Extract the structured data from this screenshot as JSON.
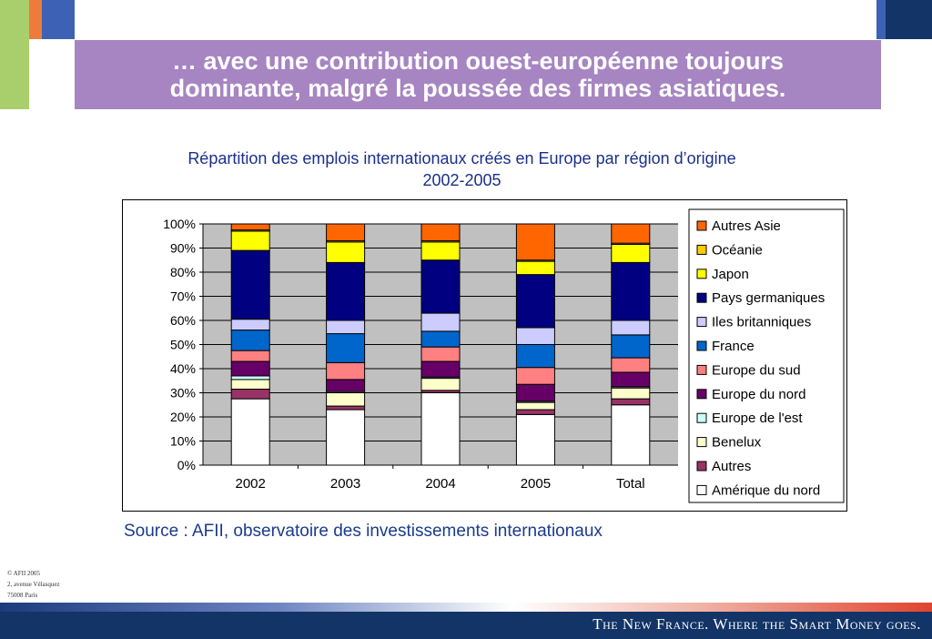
{
  "slide": {
    "title_line1": "… avec une contribution ouest-européenne toujours",
    "title_line2": "dominante, malgré la poussée des firmes asiatiques.",
    "chart_title_line1": "Répartition des emplois internationaux créés en Europe par région d’origine",
    "chart_title_line2": "2002-2005",
    "source": "Source : AFII, observatoire des investissements internationaux",
    "address_line1": "© AFII 2005",
    "address_line2": "2, avenue Vélasquez",
    "address_line3": "75008 Paris",
    "footer_slogan": "The New France. Where the Smart Money goes."
  },
  "colors": {
    "banner": "#a685c2",
    "plot_background": "#c0c0c0",
    "footer": "#123466"
  },
  "chart_data": {
    "type": "bar",
    "stacked": true,
    "percent_axis": true,
    "categories": [
      "2002",
      "2003",
      "2004",
      "2005",
      "Total"
    ],
    "y_ticks": [
      "0%",
      "10%",
      "20%",
      "30%",
      "40%",
      "50%",
      "60%",
      "70%",
      "80%",
      "90%",
      "100%"
    ],
    "ylim": [
      0,
      100
    ],
    "grid": true,
    "legend_position": "right",
    "series": [
      {
        "name": "Amérique du nord",
        "color": "#ffffff",
        "values": [
          27.5,
          23,
          30,
          21,
          25
        ]
      },
      {
        "name": "Autres",
        "color": "#993366",
        "values": [
          4,
          1.5,
          1,
          2,
          2.5
        ]
      },
      {
        "name": "Benelux",
        "color": "#ffffcc",
        "values": [
          4,
          5.5,
          5,
          3,
          4.5
        ]
      },
      {
        "name": "Europe de l'est",
        "color": "#ccffff",
        "values": [
          1.5,
          0.5,
          0.5,
          0.5,
          0.5
        ]
      },
      {
        "name": "Europe du nord",
        "color": "#660066",
        "values": [
          6,
          5,
          6.5,
          7,
          6
        ]
      },
      {
        "name": "Europe du sud",
        "color": "#ff8080",
        "values": [
          4.5,
          7,
          6,
          7,
          6
        ]
      },
      {
        "name": "France",
        "color": "#0066cc",
        "values": [
          8.5,
          12,
          6.5,
          9.5,
          9.5
        ]
      },
      {
        "name": "Iles britanniques",
        "color": "#ccccff",
        "values": [
          4.5,
          5.5,
          7.5,
          7,
          6
        ]
      },
      {
        "name": "Pays germaniques",
        "color": "#000080",
        "values": [
          28.5,
          24,
          22,
          22,
          24
        ]
      },
      {
        "name": "Japon",
        "color": "#ffff00",
        "values": [
          8,
          8.5,
          7.5,
          5.5,
          7.5
        ]
      },
      {
        "name": "Océanie",
        "color": "#ffcc00",
        "values": [
          0.5,
          0.5,
          0.5,
          0.5,
          0.5
        ]
      },
      {
        "name": "Autres Asie",
        "color": "#ff6600",
        "values": [
          2.5,
          7,
          7,
          15,
          8
        ]
      }
    ]
  }
}
